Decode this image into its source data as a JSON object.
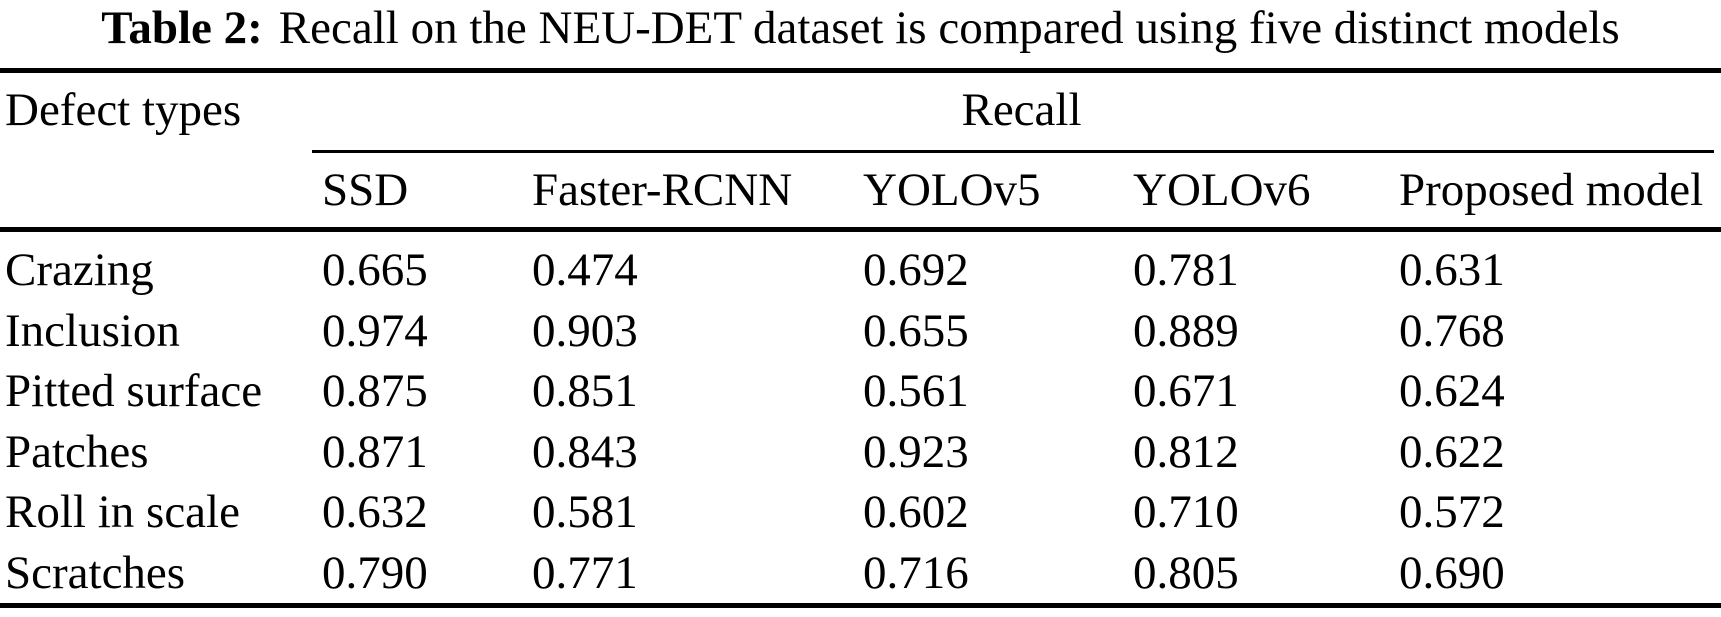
{
  "title": {
    "label": "Table 2:",
    "text": "Recall on the NEU-DET dataset is compared using five distinct models"
  },
  "table": {
    "corner_header": "Defect types",
    "group_header": "Recall",
    "model_headers": [
      "SSD",
      "Faster-RCNN",
      "YOLOv5",
      "YOLOv6",
      "Proposed model"
    ],
    "rows": [
      {
        "defect": "Crazing",
        "values": [
          "0.665",
          "0.474",
          "0.692",
          "0.781",
          "0.631"
        ]
      },
      {
        "defect": "Inclusion",
        "values": [
          "0.974",
          "0.903",
          "0.655",
          "0.889",
          "0.768"
        ]
      },
      {
        "defect": "Pitted surface",
        "values": [
          "0.875",
          "0.851",
          "0.561",
          "0.671",
          "0.624"
        ]
      },
      {
        "defect": "Patches",
        "values": [
          "0.871",
          "0.843",
          "0.923",
          "0.812",
          "0.622"
        ]
      },
      {
        "defect": "Roll in scale",
        "values": [
          "0.632",
          "0.581",
          "0.602",
          "0.710",
          "0.572"
        ]
      },
      {
        "defect": "Scratches",
        "values": [
          "0.790",
          "0.771",
          "0.716",
          "0.805",
          "0.690"
        ]
      }
    ]
  },
  "chart_data": {
    "type": "table",
    "title": "Table 2: Recall on the NEU-DET dataset is compared using five distinct models",
    "categories": [
      "Crazing",
      "Inclusion",
      "Pitted surface",
      "Patches",
      "Roll in scale",
      "Scratches"
    ],
    "series": [
      {
        "name": "SSD",
        "values": [
          0.665,
          0.974,
          0.875,
          0.871,
          0.632,
          0.79
        ]
      },
      {
        "name": "Faster-RCNN",
        "values": [
          0.474,
          0.903,
          0.851,
          0.843,
          0.581,
          0.771
        ]
      },
      {
        "name": "YOLOv5",
        "values": [
          0.692,
          0.655,
          0.561,
          0.923,
          0.602,
          0.716
        ]
      },
      {
        "name": "YOLOv6",
        "values": [
          0.781,
          0.889,
          0.671,
          0.812,
          0.71,
          0.805
        ]
      },
      {
        "name": "Proposed model",
        "values": [
          0.631,
          0.768,
          0.624,
          0.622,
          0.572,
          0.69
        ]
      }
    ]
  },
  "colors": {
    "text": "#000000",
    "background": "#ffffff",
    "rule": "#000000"
  }
}
